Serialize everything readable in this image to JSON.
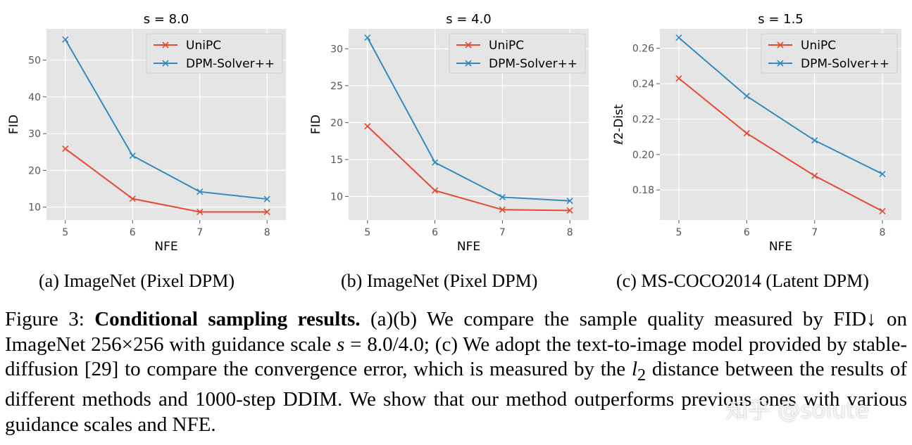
{
  "chart_data": [
    {
      "type": "line",
      "title": "s = 8.0",
      "xlabel": "NFE",
      "ylabel": "FID",
      "x": [
        5,
        6,
        7,
        8
      ],
      "xlim": [
        4.72,
        8.28
      ],
      "ylim": [
        6.5,
        58.5
      ],
      "yticks": [
        10,
        20,
        30,
        40,
        50
      ],
      "grid": true,
      "legend": "top-right",
      "series": [
        {
          "name": "UniPC",
          "color": "#e24a33",
          "values": [
            25.9,
            12.3,
            8.7,
            8.7
          ]
        },
        {
          "name": "DPM-Solver++",
          "color": "#348abd",
          "values": [
            55.6,
            24.0,
            14.2,
            12.2
          ]
        }
      ]
    },
    {
      "type": "line",
      "title": "s = 4.0",
      "xlabel": "NFE",
      "ylabel": "FID",
      "x": [
        5,
        6,
        7,
        8
      ],
      "xlim": [
        4.72,
        8.28
      ],
      "ylim": [
        6.8,
        32.7
      ],
      "yticks": [
        10,
        15,
        20,
        25,
        30
      ],
      "grid": true,
      "legend": "top-right",
      "series": [
        {
          "name": "UniPC",
          "color": "#e24a33",
          "values": [
            19.5,
            10.8,
            8.2,
            8.1
          ]
        },
        {
          "name": "DPM-Solver++",
          "color": "#348abd",
          "values": [
            31.5,
            14.6,
            9.9,
            9.4
          ]
        }
      ]
    },
    {
      "type": "line",
      "title": "s = 1.5",
      "xlabel": "NFE",
      "ylabel": "ℓ2-Dist",
      "x": [
        5,
        6,
        7,
        8
      ],
      "xlim": [
        4.72,
        8.28
      ],
      "ylim": [
        0.163,
        0.271
      ],
      "yticks": [
        0.18,
        0.2,
        0.22,
        0.24,
        0.26
      ],
      "grid": true,
      "legend": "top-right",
      "series": [
        {
          "name": "UniPC",
          "color": "#e24a33",
          "values": [
            0.243,
            0.212,
            0.188,
            0.168
          ]
        },
        {
          "name": "DPM-Solver++",
          "color": "#348abd",
          "values": [
            0.266,
            0.233,
            0.208,
            0.189
          ]
        }
      ]
    }
  ],
  "subcaptions": [
    "(a) ImageNet (Pixel DPM)",
    "(b) ImageNet (Pixel DPM)",
    "(c) MS-COCO2014 (Latent DPM)"
  ],
  "caption": {
    "label": "Figure 3: ",
    "bold": "Conditional sampling results.",
    "part1": " (a)(b) We compare the sample quality measured by FID↓ on ImageNet 256×256 with guidance scale ",
    "math_s": "s",
    "part2": " = 8.0/4.0; (c) We adopt the text-to-image model provided by stable-diffusion [29] to compare the convergence error, which is measured by the ",
    "math_l2": "l",
    "math_l2_sub": "2",
    "part3": " distance between the results of different methods and 1000-step DDIM. We show that our method outperforms previous ones with various guidance scales and NFE."
  },
  "watermark": "知乎 @solute"
}
